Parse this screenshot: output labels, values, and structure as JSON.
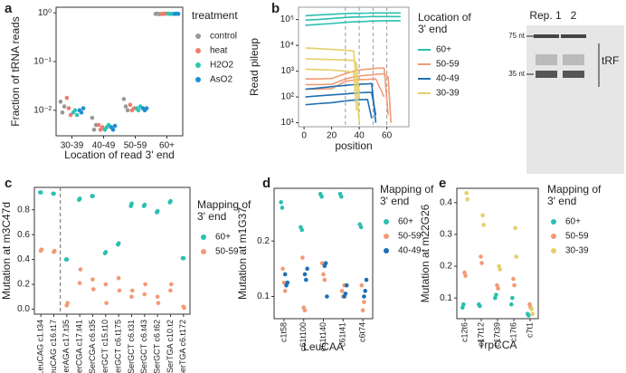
{
  "chart_data": [
    {
      "type": "strip",
      "label": "a",
      "ylabel": "Fraction of tRNA reads",
      "xlabel": "Location of read 3' end",
      "legend_title": [
        "treatment"
      ],
      "log_y": true,
      "categories": [
        "30-39",
        "40-49",
        "50-59",
        "60+"
      ],
      "ylim": [
        0.003,
        1.3
      ],
      "yticks": [
        {
          "value": 0.01,
          "label": "10⁻²"
        },
        {
          "value": 0.1,
          "label": "10⁻¹"
        },
        {
          "value": 1,
          "label": "10⁰"
        }
      ],
      "series": [
        {
          "name": "control",
          "color": "#999999",
          "values": [
            [
              0.015,
              0.009,
              0.012
            ],
            [
              0.007,
              0.004,
              0.005
            ],
            [
              0.017,
              0.012,
              0.01
            ],
            [
              0.95,
              0.96,
              0.94
            ]
          ]
        },
        {
          "name": "heat",
          "color": "#f07c6e",
          "values": [
            [
              0.018,
              0.011,
              0.008
            ],
            [
              0.005,
              0.004,
              0.0045
            ],
            [
              0.013,
              0.01,
              0.011
            ],
            [
              0.95,
              0.95,
              0.96
            ]
          ]
        },
        {
          "name": "H2O2",
          "color": "#2ec4b6",
          "values": [
            [
              0.009,
              0.01,
              0.008
            ],
            [
              0.004,
              0.0045,
              0.005
            ],
            [
              0.011,
              0.01,
              0.012
            ],
            [
              0.96,
              0.95,
              0.95
            ]
          ]
        },
        {
          "name": "AsO2",
          "color": "#1f8fd0",
          "values": [
            [
              0.01,
              0.009,
              0.011
            ],
            [
              0.0045,
              0.004,
              0.0048
            ],
            [
              0.011,
              0.01,
              0.011
            ],
            [
              0.95,
              0.96,
              0.95
            ]
          ]
        }
      ]
    },
    {
      "type": "line",
      "label": "b",
      "ylabel": "Read pileup",
      "xlabel": "position",
      "legend_title": [
        "Location of",
        "3' end"
      ],
      "log_y": true,
      "x": [
        1,
        10,
        20,
        30,
        36,
        38,
        40,
        46,
        49,
        52,
        58,
        61,
        63,
        70
      ],
      "xlim": [
        -4,
        76
      ],
      "xticks": [
        0,
        20,
        40,
        60
      ],
      "ylim": [
        7,
        300000
      ],
      "yticks": [
        {
          "value": 10,
          "label": "10¹"
        },
        {
          "value": 100,
          "label": "10²"
        },
        {
          "value": 1000,
          "label": "10³"
        },
        {
          "value": 10000,
          "label": "10⁴"
        },
        {
          "value": 100000,
          "label": "10⁵"
        }
      ],
      "vlines": [
        30,
        40,
        50,
        60
      ],
      "series": [
        {
          "name": "60+",
          "color": "#2bbfb0",
          "values": [
            [
              140000,
              150000,
              160000,
              170000,
              175000,
              175000,
              175000,
              178000,
              180000,
              180000,
              180000,
              180000,
              180000,
              180000
            ],
            [
              95000,
              100000,
              110000,
              120000,
              125000,
              125000,
              125000,
              128000,
              130000,
              130000,
              130000,
              130000,
              130000,
              130000
            ],
            [
              60000,
              65000,
              70000,
              78000,
              82000,
              82000,
              82000,
              85000,
              88000,
              88000,
              90000,
              90000,
              90000,
              90000
            ]
          ]
        },
        {
          "name": "50-59",
          "color": "#f29a76",
          "values": [
            [
              500,
              500,
              520,
              800,
              1000,
              1100,
              1100,
              1200,
              1200,
              1300,
              1300,
              20,
              null,
              null
            ],
            [
              300,
              300,
              310,
              500,
              600,
              620,
              650,
              700,
              700,
              750,
              800,
              600,
              10,
              null
            ],
            [
              200,
              200,
              210,
              400,
              450,
              460,
              470,
              480,
              490,
              500,
              100,
              null,
              null,
              null
            ]
          ]
        },
        {
          "name": "40-49",
          "color": "#1f6fb4",
          "values": [
            [
              200,
              220,
              250,
              280,
              300,
              300,
              310,
              320,
              330,
              10,
              null,
              null,
              null,
              null
            ],
            [
              100,
              110,
              120,
              130,
              140,
              140,
              145,
              150,
              150,
              20,
              null,
              null,
              null,
              null
            ],
            [
              50,
              55,
              60,
              70,
              75,
              75,
              78,
              80,
              15,
              null,
              null,
              null,
              null,
              null
            ]
          ]
        },
        {
          "name": "30-39",
          "color": "#e3cf6a",
          "values": [
            [
              8000,
              7500,
              7000,
              6500,
              6000,
              300,
              10,
              null,
              null,
              null,
              null,
              null,
              null,
              null
            ],
            [
              3000,
              2900,
              2800,
              2700,
              2600,
              2000,
              100,
              null,
              null,
              null,
              null,
              null,
              null,
              null
            ],
            [
              1200,
              1150,
              1100,
              1000,
              900,
              30,
              null,
              null,
              null,
              null,
              null,
              null,
              null,
              null
            ]
          ]
        }
      ]
    },
    {
      "type": "strip",
      "label": "c",
      "ylabel": "Mutation at m3C47d",
      "legend_title": [
        "Mapping of",
        "3' end"
      ],
      "categories": [
        "LeuCAG c1.t34",
        "LeuCAG c16.t17",
        "SerAGA c17.t35",
        "SerCGA c17.t41",
        "SerCGA c6.t35",
        "SerGCT c15.t10",
        "SerGCT c6.t175",
        "SerGCT c6.t31",
        "SerGCT c6.t43",
        "SerGCT c6.t62",
        "SerTGA c10.t2",
        "SerTGA c6.t172"
      ],
      "ylim": [
        -0.04,
        0.98
      ],
      "yticks": [
        {
          "value": 0,
          "label": "0.0"
        },
        0.2,
        0.4,
        0.6,
        0.8
      ],
      "series": [
        {
          "name": "60+",
          "color": "#2bbfb0",
          "values": [
            [
              0.94,
              0.94
            ],
            [
              0.93,
              0.93
            ],
            [
              0.4,
              0.4
            ],
            [
              0.88,
              0.89
            ],
            [
              0.91,
              0.91
            ],
            [
              0.45,
              0.46
            ],
            [
              0.52,
              0.53
            ],
            [
              0.83,
              0.85
            ],
            [
              0.83,
              0.84
            ],
            [
              0.78,
              0.79
            ],
            [
              0.86,
              0.87
            ],
            [
              0.41,
              0.41
            ]
          ]
        },
        {
          "name": "50-59",
          "color": "#f29a76",
          "values": [
            [
              0.47,
              0.48
            ],
            [
              0.46,
              0.47
            ],
            [
              0.03,
              0.05
            ],
            [
              0.21,
              0.32
            ],
            [
              0.24,
              0.16
            ],
            [
              0.2,
              0.05
            ],
            [
              0.25,
              0.15
            ],
            [
              0.1,
              0.15
            ],
            [
              0.12,
              0.2
            ],
            [
              0.1,
              0.05
            ],
            [
              0.15,
              0.2
            ],
            [
              0.02,
              0.01
            ]
          ]
        }
      ]
    },
    {
      "type": "strip",
      "label": "d",
      "ylabel": "Mutation at m1G37",
      "xlabel": "LeuCAA",
      "legend_title": [
        "Mapping of",
        "3' end"
      ],
      "categories": [
        "c1t58",
        "c61t100",
        "c61t140",
        "c61t41",
        "c6t74"
      ],
      "ylim": [
        0.06,
        0.295
      ],
      "yticks": [
        0.1,
        0.2
      ],
      "series": [
        {
          "name": "60+",
          "color": "#2bbfb0",
          "values": [
            [
              0.27,
              0.26
            ],
            [
              0.225,
              0.22
            ],
            [
              0.285,
              0.28
            ],
            [
              0.285,
              0.28
            ],
            [
              0.23,
              0.225
            ]
          ]
        },
        {
          "name": "50-59",
          "color": "#f29a76",
          "values": [
            [
              0.15,
              0.125,
              0.11
            ],
            [
              0.17,
              0.08,
              0.075
            ],
            [
              0.16,
              0.14,
              0.13
            ],
            [
              0.11,
              0.1,
              0.12
            ],
            [
              0.12,
              0.075,
              0.09
            ]
          ]
        },
        {
          "name": "40-49",
          "color": "#1f6fb4",
          "values": [
            [
              0.14,
              0.12,
              0.125
            ],
            [
              0.14,
              0.13,
              0.15
            ],
            [
              0.155,
              0.16,
              0.1
            ],
            [
              0.1,
              0.105,
              0.12
            ],
            [
              0.1,
              0.11,
              0.13
            ]
          ]
        }
      ]
    },
    {
      "type": "strip",
      "label": "e",
      "ylabel": "Mutation at m22G26",
      "xlabel": "TrpCCA",
      "legend_title": [
        "Mapping of",
        "3' end"
      ],
      "categories": [
        "c12t6",
        "c17t12",
        "c17t39",
        "c17t6",
        "c7t1"
      ],
      "ylim": [
        0.035,
        0.445
      ],
      "yticks": [
        0.1,
        0.2,
        0.3,
        0.4
      ],
      "series": [
        {
          "name": "60+",
          "color": "#2bbfb0",
          "values": [
            [
              0.07,
              0.08
            ],
            [
              0.08,
              0.075
            ],
            [
              0.1,
              0.11
            ],
            [
              0.08,
              0.1
            ],
            [
              0.05,
              0.045
            ]
          ]
        },
        {
          "name": "50-59",
          "color": "#f29a76",
          "values": [
            [
              0.18,
              0.17
            ],
            [
              0.23,
              0.21
            ],
            [
              0.14,
              0.13
            ],
            [
              0.16,
              0.14
            ],
            [
              0.08,
              0.07
            ]
          ]
        },
        {
          "name": "30-39",
          "color": "#e3cf6a",
          "values": [
            [
              0.43,
              0.41
            ],
            [
              0.36,
              0.33
            ],
            [
              0.2,
              0.19
            ],
            [
              0.32,
              0.23
            ],
            [
              0.065,
              0.05
            ]
          ]
        }
      ]
    }
  ],
  "gel": {
    "lanes": [
      "Rep. 1",
      "2"
    ],
    "markers": [
      "75 nt",
      "35 nt"
    ],
    "band_label": "tRF"
  }
}
